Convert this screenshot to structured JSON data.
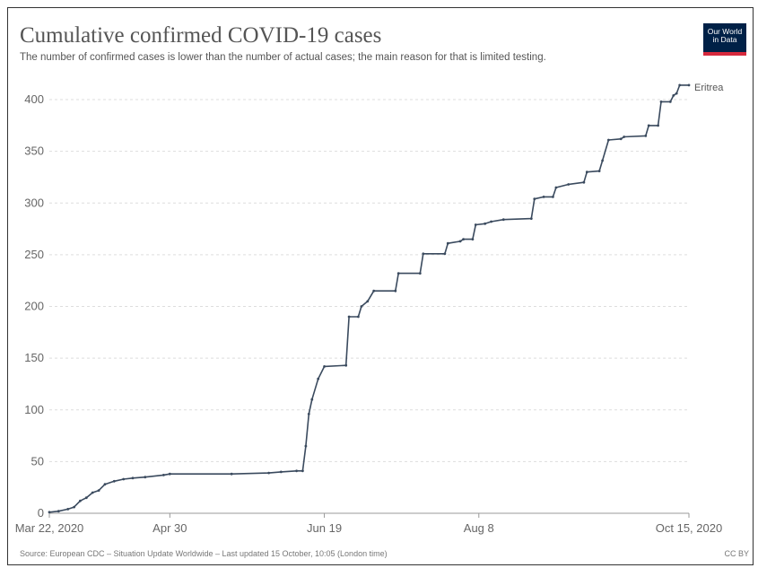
{
  "header": {
    "title": "Cumulative confirmed COVID-19 cases",
    "subtitle": "The number of confirmed cases is lower than the number of actual cases; the main reason for that is limited testing.",
    "logo_line1": "Our World",
    "logo_line2": "in Data"
  },
  "footer": {
    "source": "Source: European CDC – Situation Update Worldwide – Last updated 15 October, 10:05 (London time)",
    "license": "CC BY"
  },
  "colors": {
    "line": "#3a4a5e",
    "grid": "#dddddd",
    "logo_bg": "#002147",
    "logo_accent": "#d6293d"
  },
  "chart_data": {
    "type": "line",
    "title": "Cumulative confirmed COVID-19 cases",
    "subtitle": "The number of confirmed cases is lower than the number of actual cases; the main reason for that is limited testing.",
    "x_tick_labels": [
      "Mar 22, 2020",
      "Apr 30",
      "Jun 19",
      "Aug 8",
      "Oct 15, 2020"
    ],
    "x_tick_dates": [
      "2020-03-22",
      "2020-04-30",
      "2020-06-19",
      "2020-08-08",
      "2020-10-15"
    ],
    "xlim": [
      "2020-03-22",
      "2020-10-15"
    ],
    "y_ticks": [
      0,
      50,
      100,
      150,
      200,
      250,
      300,
      350,
      400
    ],
    "ylim": [
      0,
      420
    ],
    "grid": true,
    "series": [
      {
        "name": "Eritrea",
        "points": [
          [
            "2020-03-22",
            1
          ],
          [
            "2020-03-25",
            2
          ],
          [
            "2020-03-28",
            4
          ],
          [
            "2020-03-30",
            6
          ],
          [
            "2020-04-01",
            12
          ],
          [
            "2020-04-03",
            15
          ],
          [
            "2020-04-05",
            20
          ],
          [
            "2020-04-07",
            22
          ],
          [
            "2020-04-09",
            28
          ],
          [
            "2020-04-12",
            31
          ],
          [
            "2020-04-15",
            33
          ],
          [
            "2020-04-18",
            34
          ],
          [
            "2020-04-22",
            35
          ],
          [
            "2020-04-28",
            37
          ],
          [
            "2020-04-30",
            38
          ],
          [
            "2020-05-20",
            38
          ],
          [
            "2020-06-01",
            39
          ],
          [
            "2020-06-05",
            40
          ],
          [
            "2020-06-10",
            41
          ],
          [
            "2020-06-12",
            41
          ],
          [
            "2020-06-13",
            65
          ],
          [
            "2020-06-14",
            96
          ],
          [
            "2020-06-15",
            110
          ],
          [
            "2020-06-17",
            130
          ],
          [
            "2020-06-19",
            142
          ],
          [
            "2020-06-26",
            143
          ],
          [
            "2020-06-27",
            190
          ],
          [
            "2020-06-30",
            190
          ],
          [
            "2020-07-01",
            200
          ],
          [
            "2020-07-03",
            205
          ],
          [
            "2020-07-05",
            215
          ],
          [
            "2020-07-12",
            215
          ],
          [
            "2020-07-13",
            232
          ],
          [
            "2020-07-20",
            232
          ],
          [
            "2020-07-21",
            251
          ],
          [
            "2020-07-28",
            251
          ],
          [
            "2020-07-29",
            261
          ],
          [
            "2020-08-02",
            263
          ],
          [
            "2020-08-03",
            265
          ],
          [
            "2020-08-06",
            265
          ],
          [
            "2020-08-07",
            279
          ],
          [
            "2020-08-10",
            280
          ],
          [
            "2020-08-12",
            282
          ],
          [
            "2020-08-16",
            284
          ],
          [
            "2020-08-25",
            285
          ],
          [
            "2020-08-26",
            304
          ],
          [
            "2020-08-29",
            306
          ],
          [
            "2020-09-01",
            306
          ],
          [
            "2020-09-02",
            315
          ],
          [
            "2020-09-06",
            318
          ],
          [
            "2020-09-11",
            320
          ],
          [
            "2020-09-12",
            330
          ],
          [
            "2020-09-16",
            331
          ],
          [
            "2020-09-17",
            341
          ],
          [
            "2020-09-19",
            361
          ],
          [
            "2020-09-23",
            362
          ],
          [
            "2020-09-24",
            364
          ],
          [
            "2020-10-01",
            365
          ],
          [
            "2020-10-02",
            375
          ],
          [
            "2020-10-05",
            375
          ],
          [
            "2020-10-06",
            398
          ],
          [
            "2020-10-09",
            398
          ],
          [
            "2020-10-10",
            404
          ],
          [
            "2020-10-11",
            406
          ],
          [
            "2020-10-12",
            414
          ],
          [
            "2020-10-15",
            414
          ]
        ]
      }
    ]
  }
}
